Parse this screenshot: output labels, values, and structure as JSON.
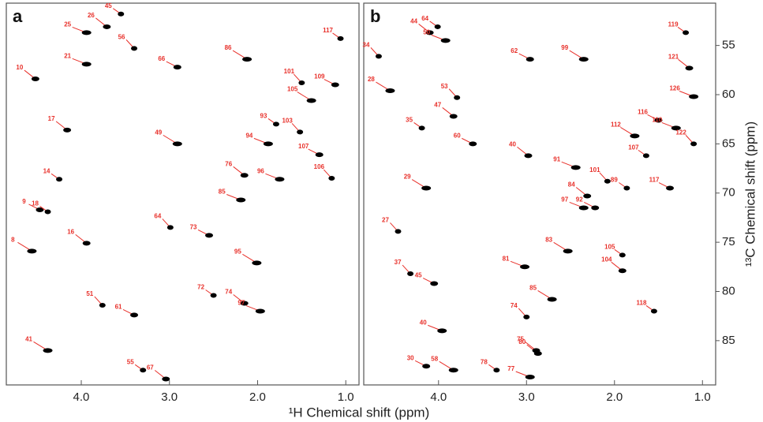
{
  "chart_data": [
    {
      "type": "scatter",
      "panel_label": "a",
      "xlabel": "¹H Chemical shift (ppm)",
      "xlim": [
        4.85,
        0.85
      ],
      "ylim": [
        50.7,
        89.5
      ],
      "xticks": [
        {
          "value": 4,
          "label": "4.0"
        },
        {
          "value": 3,
          "label": "3.0"
        },
        {
          "value": 2,
          "label": "2.0"
        },
        {
          "value": 1,
          "label": "1.0"
        }
      ],
      "peak_color": "#000000",
      "label_color": "#e8302a",
      "labels": [
        "45",
        "26",
        "25",
        "56",
        "66",
        "86",
        "117",
        "10",
        "21",
        "101",
        "109",
        "105",
        "93",
        "17",
        "94",
        "103",
        "107",
        "49",
        "14",
        "76",
        "96",
        "106",
        "9",
        "8",
        "18",
        "16",
        "85",
        "64",
        "73",
        "95",
        "72",
        "74",
        "97",
        "51",
        "61",
        "41",
        "55",
        "67"
      ],
      "x": [
        3.55,
        3.71,
        3.94,
        3.4,
        2.91,
        2.12,
        1.06,
        4.52,
        3.94,
        1.5,
        1.12,
        1.39,
        1.79,
        4.16,
        1.88,
        1.52,
        1.3,
        2.91,
        4.25,
        2.15,
        1.75,
        1.16,
        4.47,
        4.56,
        4.38,
        3.94,
        2.19,
        2.99,
        2.55,
        2.01,
        2.5,
        2.15,
        1.97,
        3.76,
        3.4,
        4.38,
        3.3,
        3.04
      ],
      "y": [
        51.8,
        53.1,
        53.7,
        55.3,
        57.2,
        56.4,
        54.3,
        58.4,
        56.9,
        58.8,
        59.0,
        60.6,
        63.0,
        63.6,
        65.0,
        63.8,
        66.1,
        65.0,
        68.6,
        68.2,
        68.6,
        68.5,
        71.7,
        75.9,
        71.9,
        75.1,
        70.7,
        73.5,
        74.3,
        77.1,
        80.4,
        81.2,
        82.0,
        81.4,
        82.4,
        86.0,
        88.0,
        88.9
      ]
    },
    {
      "type": "scatter",
      "panel_label": "b",
      "ylabel": "¹³C Chemical shift (ppm)",
      "xlim": [
        4.85,
        0.85
      ],
      "ylim": [
        50.7,
        89.5
      ],
      "xticks": [
        {
          "value": 4,
          "label": "4.0"
        },
        {
          "value": 3,
          "label": "3.0"
        },
        {
          "value": 2,
          "label": "2.0"
        },
        {
          "value": 1,
          "label": "1.0"
        }
      ],
      "yticks": [
        55,
        60,
        65,
        70,
        75,
        80,
        85
      ],
      "peak_color": "#000000",
      "label_color": "#e8302a",
      "labels": [
        "64",
        "44",
        "50",
        "34",
        "62",
        "99",
        "119",
        "121",
        "126",
        "53",
        "116",
        "28",
        "35",
        "47",
        "110",
        "122",
        "60",
        "112",
        "107",
        "40",
        "91",
        "101",
        "117",
        "29",
        "89",
        "84",
        "97",
        "27",
        "92",
        "83",
        "105",
        "104",
        "81",
        "37",
        "45",
        "85",
        "118",
        "80",
        "40",
        "74",
        "30",
        "58",
        "78",
        "75",
        "77"
      ],
      "x": [
        4.01,
        4.1,
        3.92,
        4.68,
        2.96,
        2.35,
        1.19,
        1.15,
        1.1,
        3.79,
        1.5,
        4.55,
        4.19,
        3.83,
        1.3,
        1.1,
        3.61,
        1.77,
        1.64,
        2.98,
        2.44,
        2.08,
        1.37,
        4.14,
        1.86,
        2.31,
        2.35,
        4.46,
        2.22,
        2.53,
        1.91,
        1.91,
        3.02,
        4.32,
        4.05,
        2.71,
        1.55,
        2.87,
        3.96,
        3.0,
        4.14,
        3.83,
        3.34,
        2.89,
        2.96
      ],
      "y": [
        53.1,
        53.7,
        54.5,
        56.1,
        56.4,
        56.4,
        53.7,
        57.3,
        60.2,
        60.3,
        62.6,
        59.6,
        63.4,
        62.2,
        63.4,
        65.0,
        65.0,
        64.2,
        66.2,
        66.2,
        67.4,
        68.8,
        69.5,
        69.5,
        69.5,
        70.3,
        71.5,
        73.9,
        71.5,
        75.9,
        76.3,
        77.9,
        77.5,
        78.2,
        79.2,
        80.8,
        82.0,
        86.3,
        84.0,
        82.6,
        87.6,
        88.0,
        88.0,
        86.0,
        88.7
      ]
    }
  ]
}
